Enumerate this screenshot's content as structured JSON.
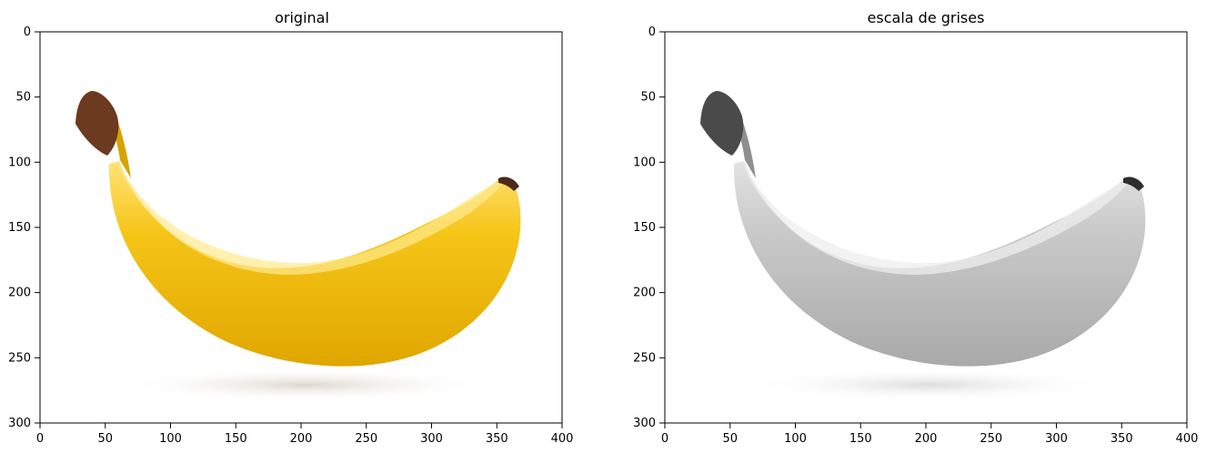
{
  "figure": {
    "background": "#ffffff",
    "panels": [
      {
        "id": "original",
        "title": "original",
        "image_mode": "color",
        "image_subject": "banana",
        "x_ticks": [
          "0",
          "50",
          "100",
          "150",
          "200",
          "250",
          "300",
          "350",
          "400"
        ],
        "y_ticks": [
          "0",
          "50",
          "100",
          "150",
          "200",
          "250",
          "300"
        ],
        "xlim": [
          0,
          400
        ],
        "ylim": [
          300,
          0
        ],
        "colors": {
          "peel_main": "#f5c518",
          "peel_shadow": "#e0a600",
          "peel_highlight": "#ffe37a",
          "stem": "#6b3a1f",
          "tip": "#4a2b18",
          "shadow": "#e9e2d8"
        }
      },
      {
        "id": "grayscale",
        "title": "escala de grises",
        "image_mode": "grayscale",
        "image_subject": "banana",
        "x_ticks": [
          "0",
          "50",
          "100",
          "150",
          "200",
          "250",
          "300",
          "350",
          "400"
        ],
        "y_ticks": [
          "0",
          "50",
          "100",
          "150",
          "200",
          "250",
          "300"
        ],
        "xlim": [
          0,
          400
        ],
        "ylim": [
          300,
          0
        ],
        "colors": {
          "peel_main": "#c9c9c9",
          "peel_shadow": "#a9a9a9",
          "peel_highlight": "#e2e2e2",
          "stem": "#4a4a4a",
          "tip": "#2e2e2e",
          "shadow": "#e6e6e6"
        }
      }
    ]
  }
}
